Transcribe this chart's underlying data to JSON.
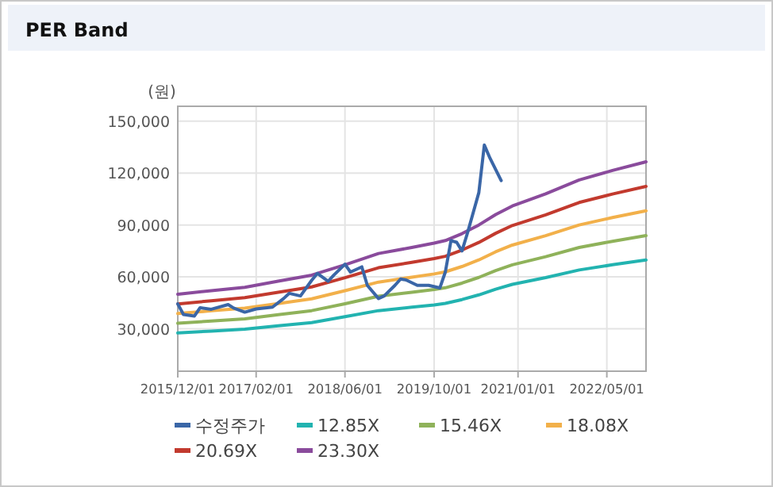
{
  "chart_data": {
    "type": "line",
    "title": "PER Band",
    "ylabel": "(원)",
    "xlim": [
      "2015-12-01",
      "2022-12-01"
    ],
    "xticks": [
      {
        "value": "2015-12-01",
        "label": "2015/12/01"
      },
      {
        "value": "2017-02-01",
        "label": "2017/02/01"
      },
      {
        "value": "2018-06-01",
        "label": "2018/06/01"
      },
      {
        "value": "2019-10-01",
        "label": "2019/10/01"
      },
      {
        "value": "2021-01-01",
        "label": "2021/01/01"
      },
      {
        "value": "2022-05-01",
        "label": "2022/05/01"
      }
    ],
    "ylim": [
      5500,
      158600
    ],
    "yticks": [
      {
        "value": 30000,
        "label": "30,000"
      },
      {
        "value": 60000,
        "label": "60,000"
      },
      {
        "value": 90000,
        "label": "90,000"
      },
      {
        "value": 120000,
        "label": "120,000"
      },
      {
        "value": 150000,
        "label": "150,000"
      }
    ],
    "grid": true,
    "legend": "bottom",
    "marker": "none",
    "line_style": "solid",
    "x": [
      "2015-12",
      "2016-06",
      "2016-12",
      "2017-06",
      "2017-12",
      "2018-06",
      "2018-12",
      "2019-06",
      "2019-10",
      "2019-12",
      "2020-03",
      "2020-06",
      "2020-09",
      "2020-12",
      "2021-06",
      "2021-12",
      "2022-06",
      "2022-12"
    ],
    "series": [
      {
        "name": "수정주가",
        "color": "#3a66a7",
        "x": [
          "2015-12",
          "2016-01",
          "2016-03",
          "2016-04",
          "2016-06",
          "2016-09",
          "2016-10",
          "2016-12",
          "2017-02",
          "2017-05",
          "2017-07",
          "2017-08",
          "2017-10",
          "2017-12",
          "2018-01",
          "2018-03",
          "2018-04",
          "2018-06",
          "2018-07",
          "2018-09",
          "2018-10",
          "2018-12",
          "2019-01",
          "2019-03",
          "2019-04",
          "2019-05",
          "2019-07",
          "2019-09",
          "2019-11",
          "2019-12",
          "2020-01",
          "2020-02",
          "2020-03",
          "2020-04",
          "2020-06",
          "2020-07",
          "2020-08",
          "2020-10"
        ],
        "values": [
          44400,
          38300,
          37400,
          42200,
          41300,
          44000,
          42000,
          39600,
          41500,
          42500,
          47500,
          50500,
          49000,
          58000,
          62000,
          57500,
          61000,
          67300,
          62800,
          65800,
          55100,
          47500,
          49000,
          55100,
          58800,
          58200,
          55100,
          55100,
          53600,
          62800,
          81000,
          80000,
          75000,
          85700,
          108700,
          136200,
          128600,
          115700
        ]
      },
      {
        "name": "12.85X",
        "color": "#22b3b0",
        "values": [
          27600,
          28700,
          29800,
          31700,
          33600,
          37000,
          40500,
          42500,
          43800,
          44700,
          46900,
          49600,
          52900,
          55700,
          59600,
          64000,
          67000,
          69800
        ]
      },
      {
        "name": "15.46X",
        "color": "#8fb25a",
        "values": [
          33200,
          34500,
          35800,
          38200,
          40500,
          44500,
          48800,
          51100,
          52700,
          53700,
          56400,
          59700,
          63700,
          67000,
          71700,
          77000,
          80600,
          83900
        ]
      },
      {
        "name": "18.08X",
        "color": "#f2b04a",
        "values": [
          38800,
          40400,
          41900,
          44600,
          47300,
          52000,
          57000,
          59800,
          61700,
          62900,
          66000,
          69800,
          74500,
          78400,
          83800,
          90000,
          94300,
          98200
        ]
      },
      {
        "name": "20.69X",
        "color": "#c23a2e",
        "values": [
          44400,
          46200,
          48000,
          51100,
          54200,
          59500,
          65300,
          68400,
          70600,
          71900,
          75500,
          79900,
          85200,
          89700,
          95900,
          103000,
          107900,
          112300
        ]
      },
      {
        "name": "23.30X",
        "color": "#8a4b9c",
        "values": [
          50000,
          52000,
          54000,
          57500,
          61000,
          67000,
          73500,
          77000,
          79500,
          81000,
          85000,
          90000,
          96000,
          101000,
          108000,
          116000,
          121500,
          126500
        ]
      }
    ]
  }
}
